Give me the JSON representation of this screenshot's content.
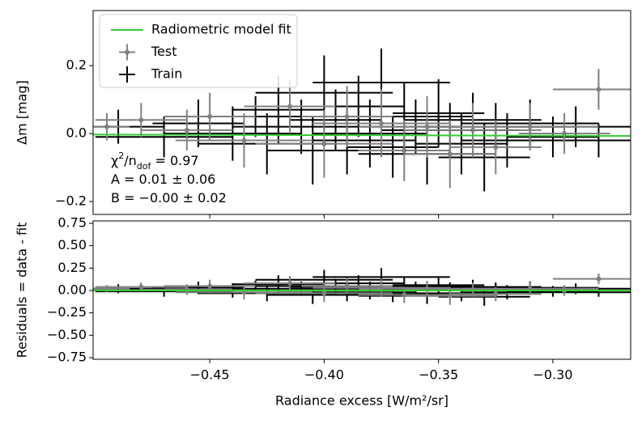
{
  "chart_data": [
    {
      "type": "errorbar",
      "ylabel": "Δm [mag]",
      "legend": "upper left",
      "annotations": [
        [
          "χ",
          "2",
          "/n",
          "dof",
          " = 0.97"
        ],
        [
          "A = 0.01 ± 0.06"
        ],
        [
          "B = −0.00 ± 0.02"
        ]
      ],
      "xlim": [
        -0.501,
        -0.266
      ],
      "ylim": [
        -0.238,
        0.362
      ],
      "yticks": [
        {
          "value": -0.2,
          "label": "−0.2"
        },
        {
          "value": 0,
          "label": "0.0"
        },
        0.2
      ],
      "series": [
        {
          "name": "Train",
          "color": "#000000",
          "x": [
            -0.49,
            -0.47,
            -0.455,
            -0.44,
            -0.43,
            -0.425,
            -0.42,
            -0.41,
            -0.405,
            -0.4,
            -0.395,
            -0.39,
            -0.385,
            -0.38,
            -0.375,
            -0.37,
            -0.365,
            -0.36,
            -0.355,
            -0.35,
            -0.345,
            -0.34,
            -0.335,
            -0.33,
            -0.325,
            -0.32,
            -0.31,
            -0.3,
            -0.29,
            -0.28
          ],
          "values": [
            0.02,
            -0.01,
            0.03,
            0,
            0.05,
            -0.03,
            0.07,
            0.02,
            -0.05,
            0.12,
            0.04,
            -0.02,
            0.08,
            0,
            0.15,
            -0.04,
            0.05,
            0.02,
            -0.06,
            0.06,
            0.01,
            -0.03,
            0.04,
            -0.07,
            0.02,
            -0.02,
            0.03,
            -0.01,
            0.02,
            -0.02
          ],
          "xerr": [
            0.02,
            0.03,
            0.02,
            0.03,
            0.02,
            0.03,
            0.02,
            0.03,
            0.02,
            0.03,
            0.02,
            0.03,
            0.02,
            0.025,
            0.03,
            0.02,
            0.03,
            0.02,
            0.03,
            0.02,
            0.03,
            0.02,
            0.03,
            0.02,
            0.03,
            0.02,
            0.03,
            0.02,
            0.03,
            0.02
          ],
          "yerr": [
            0.05,
            0.06,
            0.07,
            0.08,
            0.06,
            0.09,
            0.1,
            0.08,
            0.1,
            0.11,
            0.09,
            0.1,
            0.09,
            0.1,
            0.1,
            0.09,
            0.1,
            0.08,
            0.09,
            0.1,
            0.08,
            0.09,
            0.08,
            0.1,
            0.07,
            0.08,
            0.07,
            0.06,
            0.06,
            0.05
          ]
        },
        {
          "name": "Test",
          "color": "#808080",
          "marker": true,
          "x": [
            -0.495,
            -0.48,
            -0.46,
            -0.45,
            -0.435,
            -0.415,
            -0.4,
            -0.39,
            -0.375,
            -0.365,
            -0.355,
            -0.345,
            -0.335,
            -0.325,
            -0.31,
            -0.295,
            -0.28
          ],
          "values": [
            0.02,
            0.04,
            0.01,
            0.05,
            -0.02,
            0.08,
            -0.03,
            0.05,
            0.03,
            -0.05,
            0.02,
            -0.06,
            0.01,
            -0.04,
            0.02,
            0,
            0.13
          ],
          "xerr": [
            0.01,
            0.02,
            0.02,
            0.02,
            0.03,
            0.02,
            0.03,
            0.02,
            0.03,
            0.02,
            0.03,
            0.02,
            0.03,
            0.02,
            0.03,
            0.02,
            0.02
          ],
          "yerr": [
            0.04,
            0.05,
            0.06,
            0.07,
            0.08,
            0.08,
            0.1,
            0.09,
            0.1,
            0.09,
            0.09,
            0.1,
            0.08,
            0.08,
            0.07,
            0.06,
            0.06
          ]
        },
        {
          "name": "Radiometric model fit",
          "color": "#33cc33",
          "line": true,
          "x": [
            -0.501,
            -0.266
          ],
          "values": [
            -0.003,
            -0.007
          ]
        }
      ]
    },
    {
      "type": "errorbar",
      "ylabel": "Residuals = data - fit",
      "xlabel": "Radiance excess [W/m²/sr]",
      "xlim": [
        -0.501,
        -0.266
      ],
      "ylim": [
        -0.768,
        0.777
      ],
      "xticks": [
        {
          "value": -0.45,
          "label": "−0.45"
        },
        {
          "value": -0.4,
          "label": "−0.40"
        },
        {
          "value": -0.35,
          "label": "−0.35"
        },
        {
          "value": -0.3,
          "label": "−0.30"
        }
      ],
      "yticks": [
        {
          "value": -0.75,
          "label": "−0.75"
        },
        {
          "value": -0.5,
          "label": "−0.50"
        },
        {
          "value": -0.25,
          "label": "−0.25"
        },
        {
          "value": 0,
          "label": "0.00"
        },
        0.25,
        {
          "value": 0.5,
          "label": "0.50"
        },
        0.75
      ],
      "series": [
        {
          "color": "#000000",
          "x": [
            -0.49,
            -0.47,
            -0.455,
            -0.44,
            -0.43,
            -0.425,
            -0.42,
            -0.41,
            -0.405,
            -0.4,
            -0.395,
            -0.39,
            -0.385,
            -0.38,
            -0.375,
            -0.37,
            -0.365,
            -0.36,
            -0.355,
            -0.35,
            -0.345,
            -0.34,
            -0.335,
            -0.33,
            -0.325,
            -0.32,
            -0.31,
            -0.3,
            -0.29,
            -0.28
          ],
          "values": [
            0.02,
            -0.01,
            0.03,
            0,
            0.05,
            -0.03,
            0.07,
            0.02,
            -0.05,
            0.12,
            0.04,
            -0.02,
            0.08,
            0,
            0.15,
            -0.04,
            0.05,
            0.02,
            -0.06,
            0.06,
            0.01,
            -0.03,
            0.04,
            -0.07,
            0.02,
            -0.02,
            0.03,
            -0.01,
            0.02,
            -0.02
          ],
          "xerr": [
            0.02,
            0.03,
            0.02,
            0.03,
            0.02,
            0.03,
            0.02,
            0.03,
            0.02,
            0.03,
            0.02,
            0.03,
            0.02,
            0.025,
            0.03,
            0.02,
            0.03,
            0.02,
            0.03,
            0.02,
            0.03,
            0.02,
            0.03,
            0.02,
            0.03,
            0.02,
            0.03,
            0.02,
            0.03,
            0.02
          ],
          "yerr": [
            0.05,
            0.06,
            0.07,
            0.08,
            0.06,
            0.09,
            0.1,
            0.08,
            0.1,
            0.11,
            0.09,
            0.1,
            0.09,
            0.1,
            0.1,
            0.09,
            0.1,
            0.08,
            0.09,
            0.1,
            0.08,
            0.09,
            0.08,
            0.1,
            0.07,
            0.08,
            0.07,
            0.06,
            0.06,
            0.05
          ]
        },
        {
          "color": "#808080",
          "marker": true,
          "x": [
            -0.495,
            -0.48,
            -0.46,
            -0.45,
            -0.435,
            -0.415,
            -0.4,
            -0.39,
            -0.375,
            -0.365,
            -0.355,
            -0.345,
            -0.335,
            -0.325,
            -0.31,
            -0.295,
            -0.28
          ],
          "values": [
            0.02,
            0.04,
            0.01,
            0.05,
            -0.02,
            0.08,
            -0.03,
            0.05,
            0.03,
            -0.05,
            0.02,
            -0.06,
            0.01,
            -0.04,
            0.02,
            0,
            0.13
          ],
          "xerr": [
            0.01,
            0.02,
            0.02,
            0.02,
            0.03,
            0.02,
            0.03,
            0.02,
            0.03,
            0.02,
            0.03,
            0.02,
            0.03,
            0.02,
            0.03,
            0.02,
            0.02
          ],
          "yerr": [
            0.04,
            0.05,
            0.06,
            0.07,
            0.08,
            0.08,
            0.1,
            0.09,
            0.1,
            0.09,
            0.09,
            0.1,
            0.08,
            0.08,
            0.07,
            0.06,
            0.06
          ]
        },
        {
          "color": "#33cc33",
          "line": true,
          "x": [
            -0.501,
            -0.266
          ],
          "values": [
            0,
            0
          ]
        }
      ]
    }
  ]
}
